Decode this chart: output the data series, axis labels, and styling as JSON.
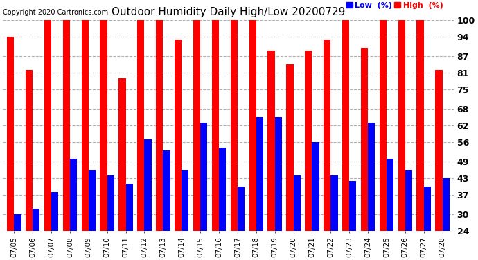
{
  "title": "Outdoor Humidity Daily High/Low 20200729",
  "copyright": "Copyright 2020 Cartronics.com",
  "legend_low": "Low  (%)",
  "legend_high": "High  (%)",
  "dates": [
    "07/05",
    "07/06",
    "07/07",
    "07/08",
    "07/09",
    "07/10",
    "07/11",
    "07/12",
    "07/13",
    "07/14",
    "07/15",
    "07/16",
    "07/17",
    "07/18",
    "07/19",
    "07/20",
    "07/21",
    "07/22",
    "07/23",
    "07/24",
    "07/25",
    "07/26",
    "07/27",
    "07/28"
  ],
  "high": [
    94,
    82,
    100,
    100,
    100,
    100,
    79,
    100,
    100,
    93,
    100,
    100,
    100,
    100,
    89,
    84,
    89,
    93,
    100,
    90,
    100,
    100,
    100,
    82
  ],
  "low": [
    30,
    32,
    38,
    50,
    46,
    44,
    41,
    57,
    53,
    46,
    63,
    54,
    40,
    65,
    65,
    44,
    56,
    44,
    42,
    63,
    50,
    46,
    40,
    43
  ],
  "high_color": "#ff0000",
  "low_color": "#0000ff",
  "bg_color": "#ffffff",
  "grid_color": "#b0b0b0",
  "yticks": [
    24,
    30,
    37,
    43,
    49,
    56,
    62,
    68,
    75,
    81,
    87,
    94,
    100
  ],
  "ymin": 24,
  "ymax": 100,
  "bar_width": 0.38
}
